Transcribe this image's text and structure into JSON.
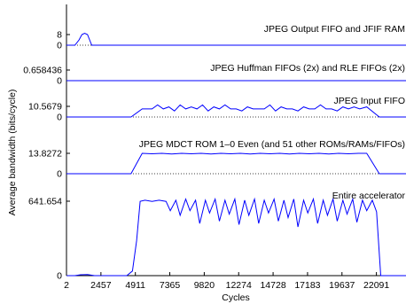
{
  "chart_data": {
    "type": "line",
    "xlabel": "Cycles",
    "ylabel": "Average bandwidth (bits/cycle)",
    "x_ticks": [
      2,
      2457,
      4911,
      7365,
      9820,
      12274,
      14728,
      17183,
      19637,
      22091
    ],
    "xlim": [
      2,
      24200
    ],
    "line_color": "#0000ff",
    "grid": false,
    "panels": [
      {
        "name": "JPEG Output FIFO and JFIF RAM",
        "ylim": [
          0,
          8
        ],
        "y_ticks": [
          "0",
          "8"
        ],
        "x": [
          2,
          600,
          900,
          1100,
          1300,
          1500,
          1650,
          1800,
          2000,
          24200
        ],
        "y": [
          0,
          0,
          4,
          8,
          9,
          8,
          4,
          0,
          0,
          0
        ]
      },
      {
        "name": "JPEG Huffman FIFOs (2x) and RLE FIFOs (2x)",
        "ylim": [
          0,
          0.658436
        ],
        "y_ticks": [
          "0",
          "0.658436"
        ],
        "x": [
          2,
          24200
        ],
        "y": [
          0,
          0
        ]
      },
      {
        "name": "JPEG Input FIFO",
        "ylim": [
          0,
          10.5679
        ],
        "y_ticks": [
          "0",
          "10.5679"
        ],
        "x": [
          2,
          4600,
          5400,
          6100,
          6500,
          6900,
          7300,
          7700,
          8100,
          8500,
          8900,
          9300,
          9700,
          10100,
          10500,
          10900,
          11300,
          11700,
          12100,
          12500,
          12900,
          13300,
          13700,
          14100,
          14500,
          14900,
          15300,
          15700,
          16100,
          16500,
          16900,
          17300,
          17700,
          18100,
          18500,
          18900,
          19300,
          19700,
          20100,
          20500,
          20900,
          21400,
          22300,
          24200
        ],
        "y": [
          0,
          0,
          8,
          8,
          12,
          8,
          10,
          6,
          12,
          8,
          10,
          8,
          12,
          6,
          10,
          8,
          12,
          8,
          8,
          6,
          10,
          8,
          8,
          8,
          12,
          6,
          10,
          8,
          8,
          6,
          10,
          8,
          8,
          12,
          8,
          8,
          6,
          10,
          8,
          10,
          8,
          10,
          0,
          0
        ]
      },
      {
        "name": "JPEG MDCT ROM 1–0 Even (and 51 other ROMs/RAMs/FIFOs)",
        "ylim": [
          0,
          13.8272
        ],
        "y_ticks": [
          "0",
          "13.8272"
        ],
        "x": [
          2,
          4600,
          5400,
          6100,
          6800,
          7500,
          8200,
          8900,
          9600,
          10300,
          11000,
          11700,
          12400,
          13100,
          13800,
          14500,
          15200,
          15900,
          16600,
          17300,
          18000,
          18700,
          19400,
          20100,
          20800,
          21400,
          22300,
          24200
        ],
        "y": [
          0,
          0,
          13.8,
          13.5,
          13.8,
          13.4,
          13.8,
          13.5,
          13.8,
          13.4,
          13.8,
          13.5,
          13.8,
          13.4,
          13.8,
          13.5,
          13.8,
          13.4,
          13.8,
          13.5,
          13.8,
          13.4,
          13.8,
          13.5,
          13.8,
          13.8,
          0,
          0
        ]
      },
      {
        "name": "Entire accelerator",
        "ylim": [
          0,
          641.654
        ],
        "y_ticks": [
          "0",
          "641.654"
        ],
        "x": [
          2,
          600,
          1000,
          1500,
          2000,
          4300,
          4700,
          5000,
          5250,
          5600,
          6100,
          6600,
          7100,
          7400,
          7800,
          8100,
          8500,
          8800,
          9200,
          9500,
          9900,
          10200,
          10600,
          10900,
          11300,
          11600,
          12000,
          12300,
          12700,
          13000,
          13400,
          13700,
          14100,
          14400,
          14800,
          15100,
          15500,
          15800,
          16200,
          16500,
          16900,
          17200,
          17600,
          17900,
          18300,
          18600,
          19000,
          19300,
          19700,
          20000,
          20400,
          20700,
          21100,
          21400,
          21800,
          22100,
          22400,
          24200
        ],
        "y": [
          0,
          0,
          8,
          10,
          0,
          0,
          40,
          300,
          640,
          650,
          640,
          650,
          640,
          560,
          650,
          520,
          660,
          560,
          650,
          450,
          650,
          540,
          660,
          470,
          650,
          530,
          660,
          440,
          650,
          520,
          660,
          450,
          650,
          540,
          660,
          470,
          650,
          500,
          660,
          420,
          650,
          540,
          660,
          450,
          650,
          520,
          660,
          470,
          650,
          530,
          660,
          460,
          650,
          560,
          650,
          550,
          0,
          0
        ]
      }
    ]
  }
}
